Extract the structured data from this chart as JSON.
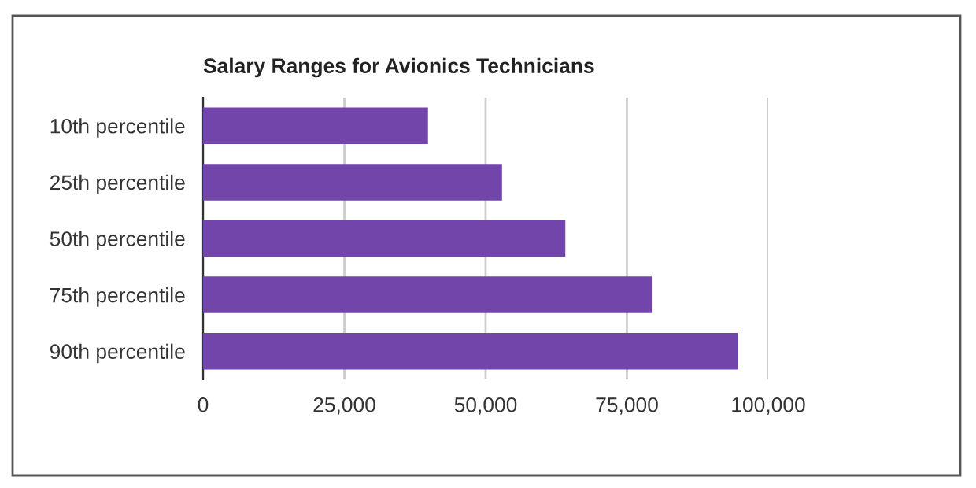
{
  "chart_data": {
    "type": "bar",
    "orientation": "horizontal",
    "title": "Salary Ranges for Avionics Technicians",
    "categories": [
      "10th percentile",
      "25th percentile",
      "50th percentile",
      "75th percentile",
      "90th percentile"
    ],
    "values": [
      39800,
      52900,
      64100,
      79400,
      94600
    ],
    "color": "#7145aa",
    "xlim": [
      0,
      100000
    ],
    "xticks": [
      {
        "value": 0,
        "label": "0"
      },
      {
        "value": 25000,
        "label": "25,000"
      },
      {
        "value": 50000,
        "label": "50,000"
      },
      {
        "value": 75000,
        "label": "75,000"
      },
      {
        "value": 100000,
        "label": "100,000"
      }
    ],
    "grid": "x"
  }
}
